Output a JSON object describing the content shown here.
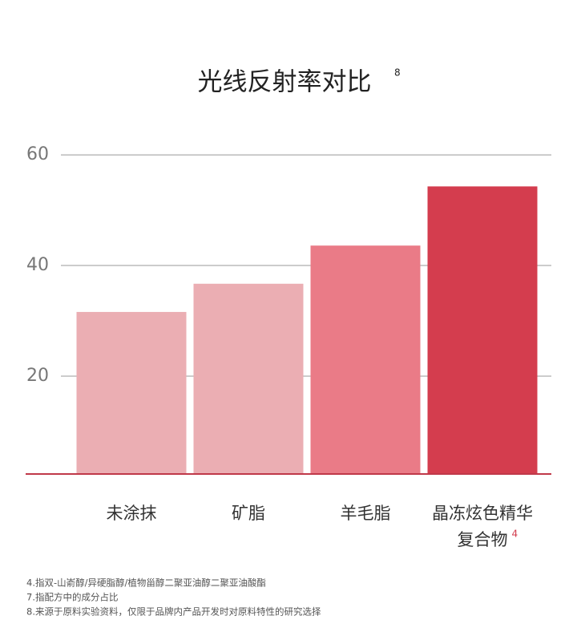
{
  "chart_data": {
    "type": "bar",
    "title": "光线反射率对比",
    "title_superscript": "8",
    "categories": [
      "未涂抹",
      "矿脂",
      "羊毛脂",
      {
        "lines": [
          "晶冻炫色精华",
          "复合物"
        ],
        "superscript": "4"
      }
    ],
    "values": [
      31.6,
      36.7,
      43.6,
      54.3
    ],
    "colors": [
      "#ebaeb3",
      "#ebaeb3",
      "#ea7b87",
      "#d43d4e"
    ],
    "highlight_label_color": "#d23b4c",
    "ylim": [
      2.3,
      61.9
    ],
    "yticks": [
      20,
      40,
      60
    ],
    "grid": true,
    "footnotes": [
      "4.指双-山嵛醇/异硬脂醇/植物甾醇二聚亚油醇二聚亚油酸酯",
      "7.指配方中的成分占比",
      "8.来源于原料实验资料，仅限于品牌内产品开发时对原料特性的研究选择"
    ]
  }
}
